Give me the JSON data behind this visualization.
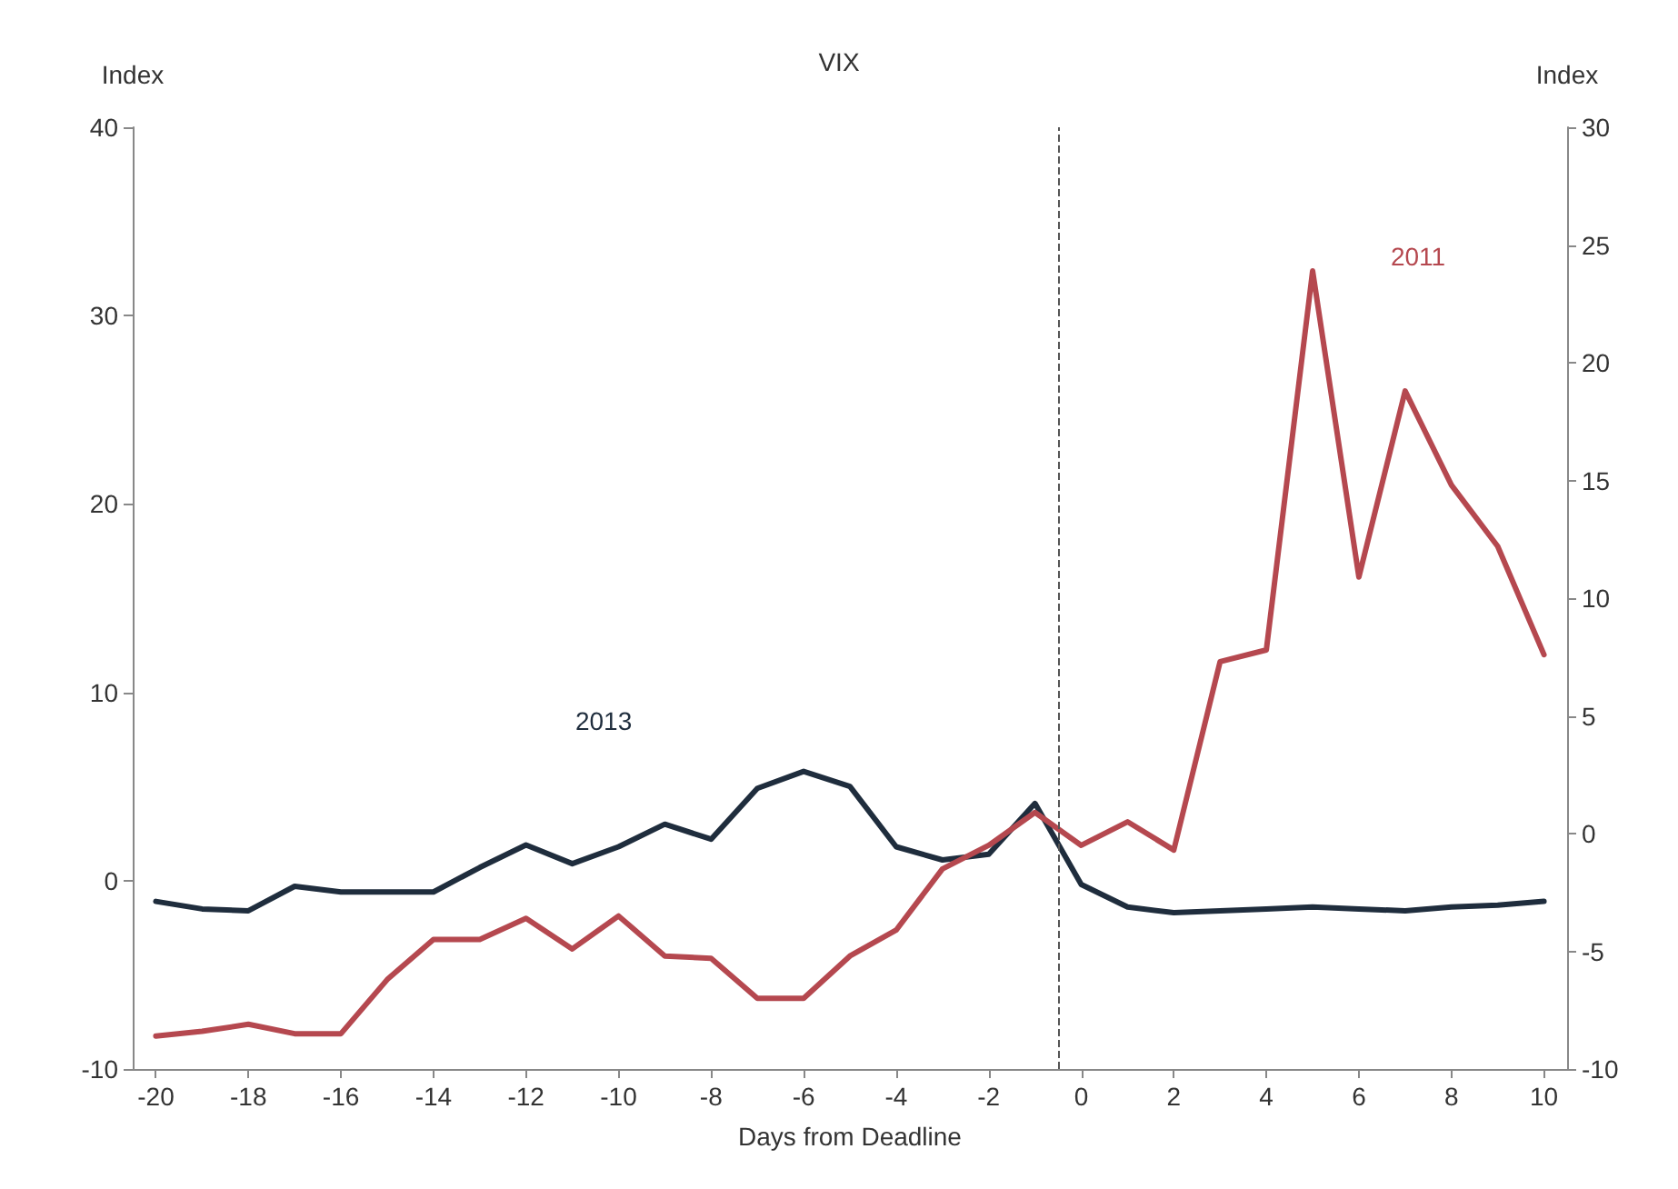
{
  "chart_data": {
    "type": "line",
    "title": "VIX",
    "xlabel": "Days from Deadline",
    "ylabel": "Index",
    "y2label": "Index",
    "x": [
      -20,
      -19,
      -18,
      -17,
      -16,
      -15,
      -14,
      -13,
      -12,
      -11,
      -10,
      -9,
      -8,
      -7,
      -6,
      -5,
      -4,
      -3,
      -2,
      -1,
      0,
      1,
      2,
      3,
      4,
      5,
      6,
      7,
      8,
      9,
      10
    ],
    "series": [
      {
        "name": "2013",
        "color": "#1f2d3d",
        "values": [
          -1.1,
          -1.5,
          -1.6,
          -0.3,
          -0.6,
          -0.6,
          -0.6,
          0.7,
          1.9,
          0.9,
          1.8,
          3.0,
          2.2,
          4.9,
          5.8,
          5.0,
          1.8,
          1.1,
          1.4,
          4.1,
          -0.2,
          -1.4,
          -1.7,
          -1.6,
          -1.5,
          -1.4,
          -1.5,
          -1.6,
          -1.4,
          -1.3,
          -1.1
        ]
      },
      {
        "name": "2011",
        "color": "#b5484f",
        "axis": "y2",
        "values": [
          -8.6,
          -8.4,
          -8.1,
          -8.5,
          -8.5,
          -6.2,
          -4.5,
          -4.5,
          -3.6,
          -4.9,
          -3.5,
          -5.2,
          -5.3,
          -7.0,
          -7.0,
          -5.2,
          -4.1,
          -1.5,
          -0.5,
          0.9,
          -0.5,
          0.5,
          -0.7,
          7.3,
          7.8,
          23.9,
          10.9,
          18.8,
          14.8,
          12.2,
          7.6
        ]
      }
    ],
    "xlim": [
      -20.5,
      10.5
    ],
    "xticks": [
      -20,
      -18,
      -16,
      -14,
      -12,
      -10,
      -8,
      -6,
      -4,
      -2,
      0,
      2,
      4,
      6,
      8,
      10
    ],
    "ylim": [
      -10,
      40
    ],
    "yticks": [
      -10,
      0,
      10,
      20,
      30,
      40
    ],
    "y2lim": [
      -10,
      30
    ],
    "y2ticks": [
      -10,
      -5,
      0,
      5,
      10,
      15,
      20,
      25,
      30
    ],
    "ref_lines": [
      {
        "axis": "x",
        "value": -0.5,
        "color": "#555555",
        "line_style": "dashed"
      }
    ],
    "grid": false,
    "legend": false,
    "marker": "none",
    "line_style": "solid"
  }
}
